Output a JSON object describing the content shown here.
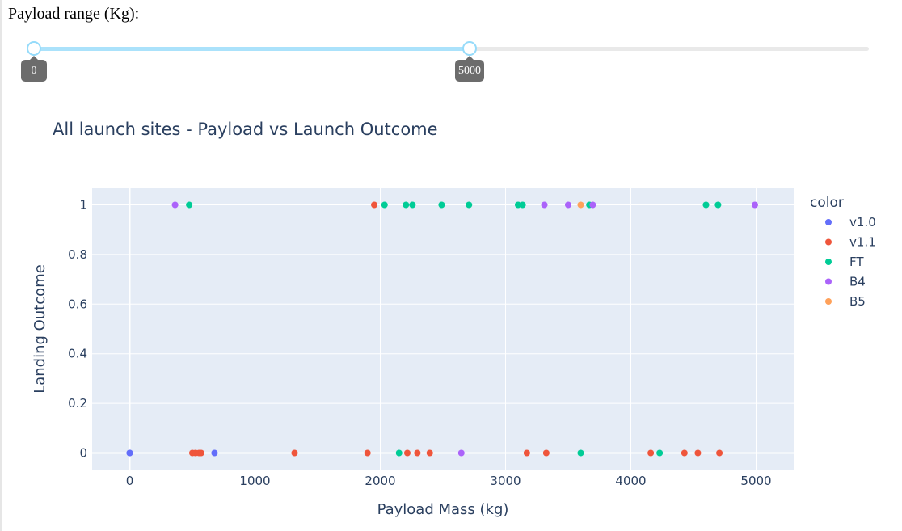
{
  "range": {
    "label": "Payload range (Kg):",
    "min": 0,
    "max": 10000,
    "low": 0,
    "high": 5000,
    "low_label": "0",
    "high_label": "5000"
  },
  "chart_data": {
    "type": "scatter",
    "title": "All launch sites - Payload vs Launch Outcome",
    "xlabel": "Payload Mass (kg)",
    "ylabel": "Landing Outcome",
    "xlim": [
      -300,
      5300
    ],
    "ylim": [
      -0.07,
      1.07
    ],
    "x_ticks": [
      0,
      1000,
      2000,
      3000,
      4000,
      5000
    ],
    "x_tick_labels": [
      "0",
      "1000",
      "2000",
      "3000",
      "4000",
      "5000"
    ],
    "y_ticks": [
      0,
      0.2,
      0.4,
      0.6,
      0.8,
      1
    ],
    "y_tick_labels": [
      "0",
      "0.2",
      "0.4",
      "0.6",
      "0.8",
      "1"
    ],
    "grid": true,
    "background": "#e5ecf6",
    "legend_title": "color",
    "legend_position": "right",
    "series": [
      {
        "name": "v1.0",
        "color": "#636efa",
        "points": [
          [
            0,
            0
          ],
          [
            0,
            0
          ],
          [
            677,
            0
          ]
        ]
      },
      {
        "name": "v1.1",
        "color": "#ef553b",
        "points": [
          [
            500,
            0
          ],
          [
            525,
            0
          ],
          [
            553,
            0
          ],
          [
            570,
            0
          ],
          [
            1316,
            0
          ],
          [
            1898,
            0
          ],
          [
            1952,
            1
          ],
          [
            2216,
            0
          ],
          [
            2296,
            0
          ],
          [
            2395,
            0
          ],
          [
            3170,
            0
          ],
          [
            3325,
            0
          ],
          [
            4159,
            0
          ],
          [
            4428,
            0
          ],
          [
            4535,
            0
          ],
          [
            4707,
            0
          ]
        ]
      },
      {
        "name": "FT",
        "color": "#00cc96",
        "points": [
          [
            475,
            1
          ],
          [
            2034,
            1
          ],
          [
            2150,
            0
          ],
          [
            2205,
            1
          ],
          [
            2257,
            1
          ],
          [
            2490,
            1
          ],
          [
            2708,
            1
          ],
          [
            3100,
            1
          ],
          [
            3136,
            1
          ],
          [
            3600,
            0
          ],
          [
            3669,
            1
          ],
          [
            4230,
            0
          ],
          [
            4600,
            1
          ],
          [
            4696,
            1
          ]
        ]
      },
      {
        "name": "B4",
        "color": "#ab63fa",
        "points": [
          [
            362,
            1
          ],
          [
            2647,
            0
          ],
          [
            3310,
            1
          ],
          [
            3500,
            1
          ],
          [
            3696,
            1
          ],
          [
            4990,
            1
          ]
        ]
      },
      {
        "name": "B5",
        "color": "#ffa15a",
        "points": [
          [
            3600,
            1
          ]
        ]
      }
    ]
  }
}
